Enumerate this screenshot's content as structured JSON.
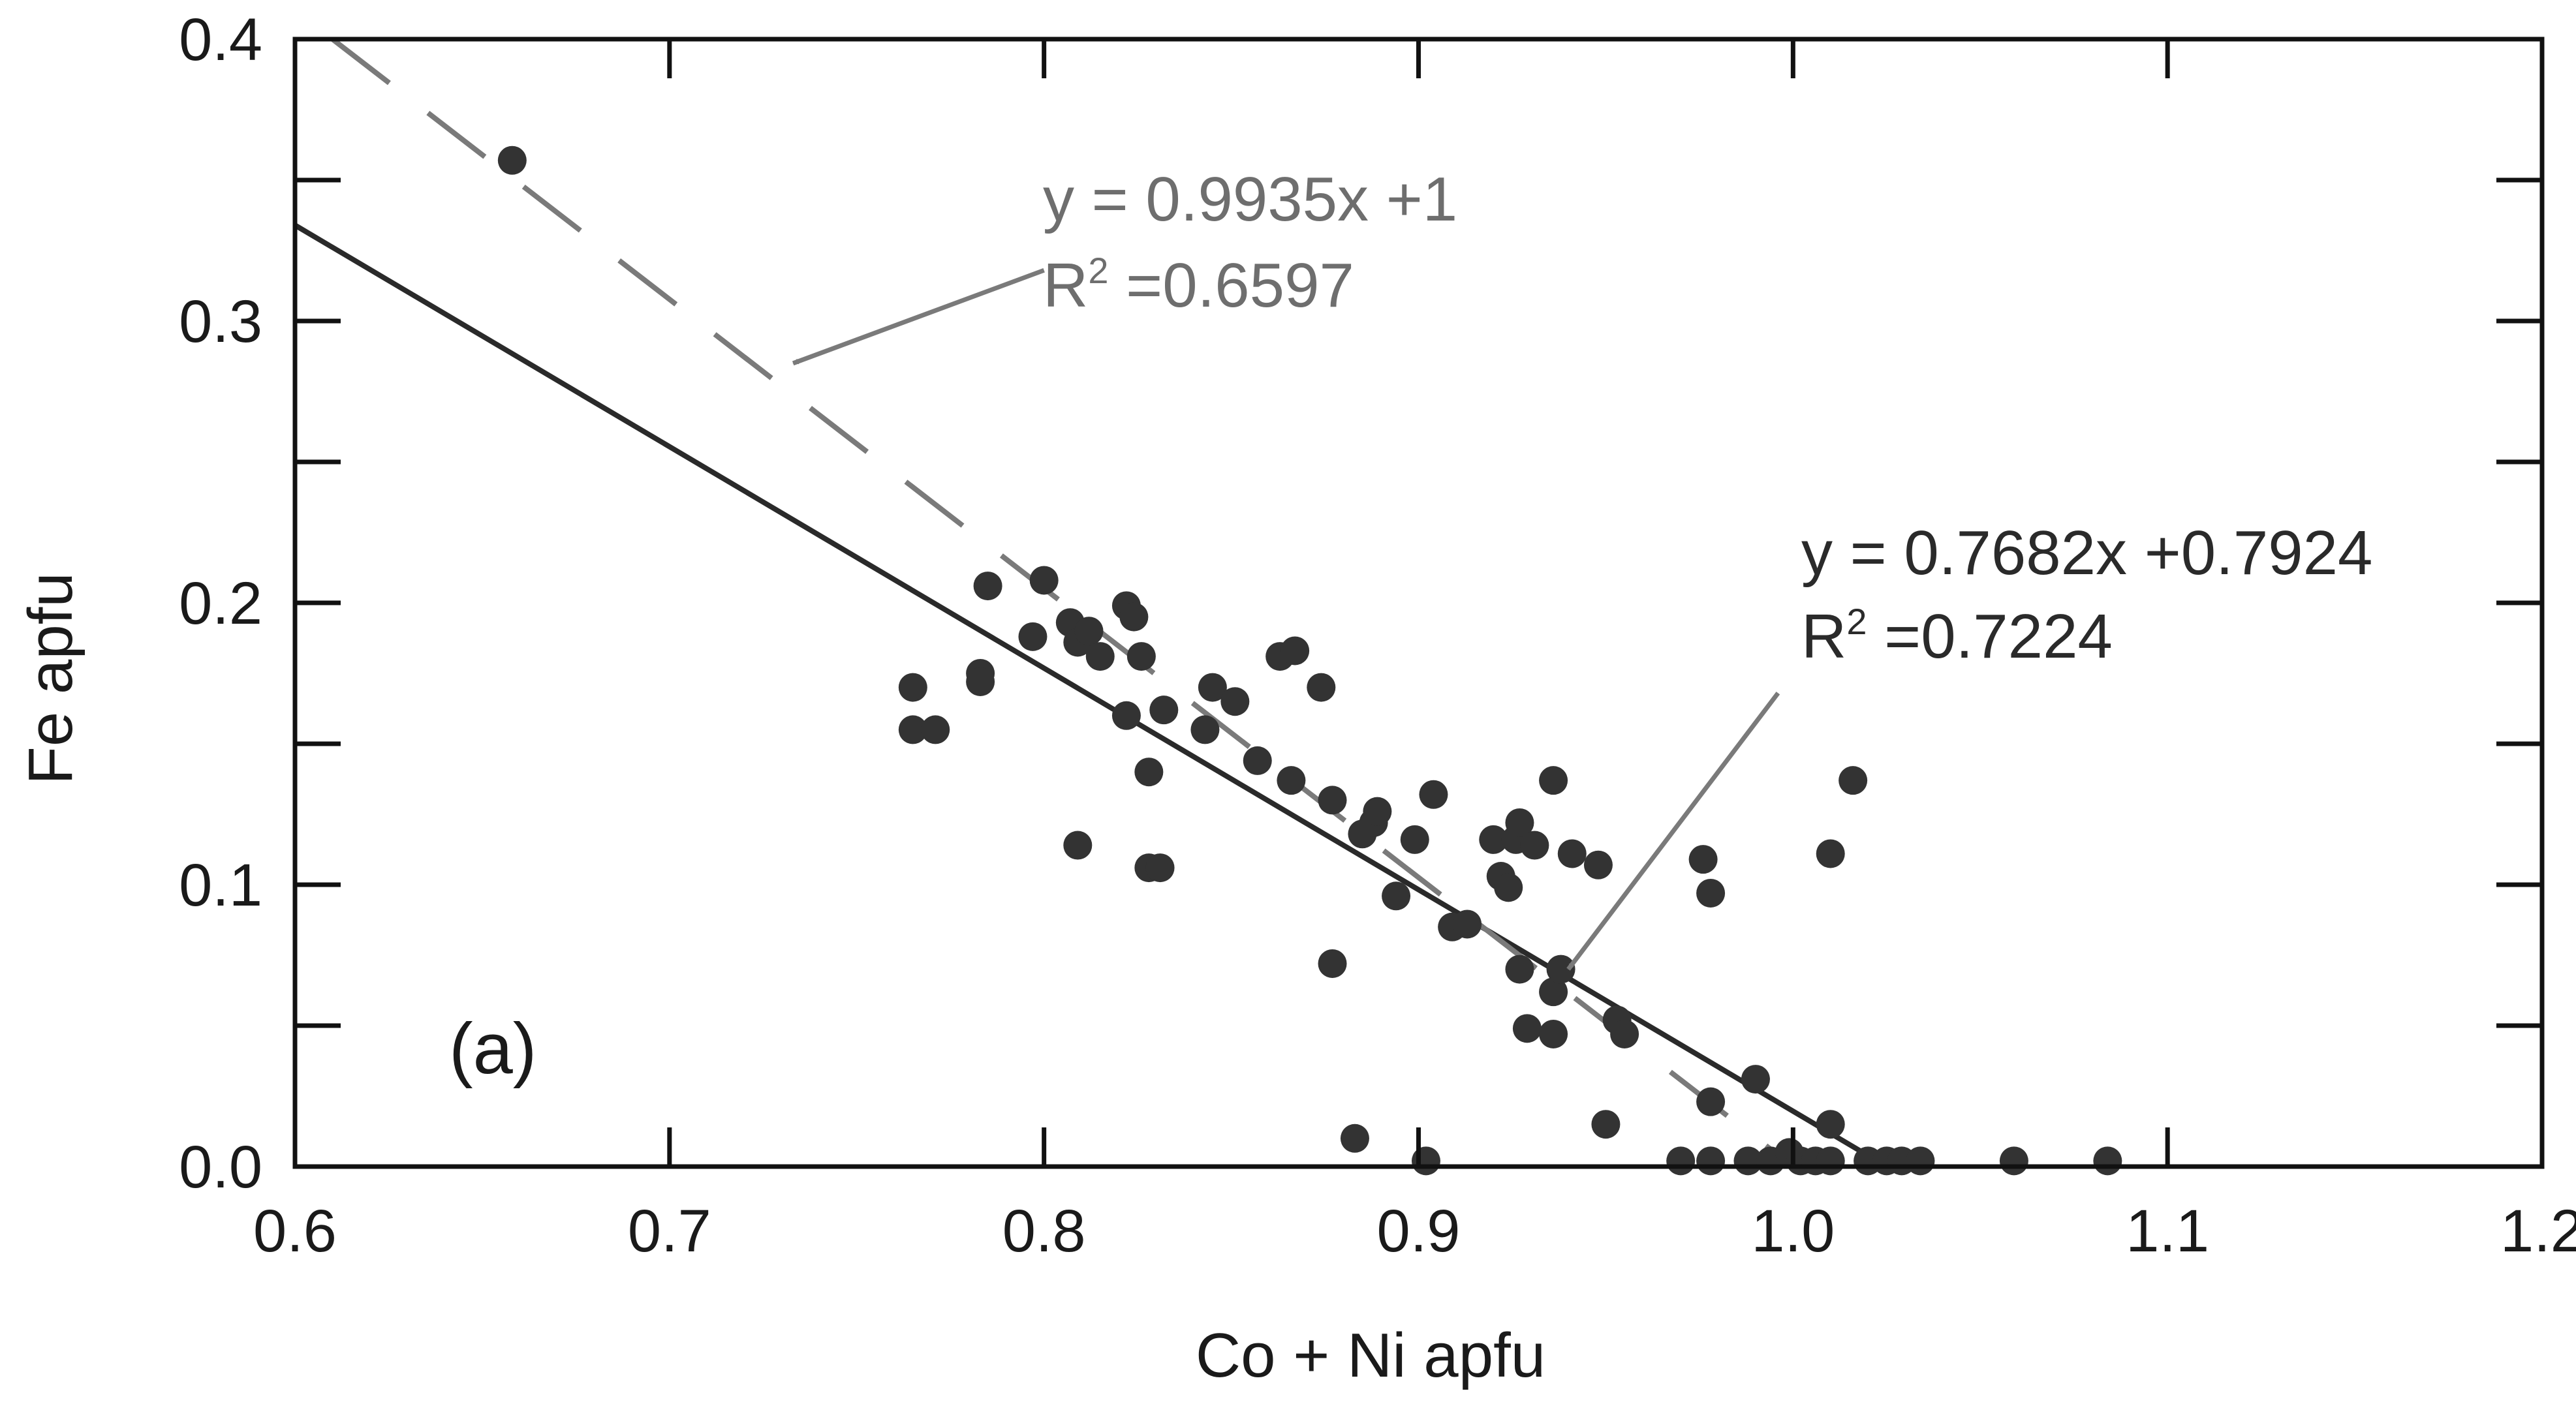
{
  "chart_data": {
    "type": "scatter",
    "panel_label": "(a)",
    "xlabel": "Co + Ni apfu",
    "ylabel": "Fe apfu",
    "xlim": [
      0.6,
      1.2
    ],
    "ylim": [
      0.0,
      0.4
    ],
    "x_ticks": [
      "0.6",
      "0.7",
      "0.8",
      "0.9",
      "1.0",
      "1.1",
      "1.2"
    ],
    "y_ticks": [
      "0.0",
      "0.1",
      "0.2",
      "0.3",
      "0.4"
    ],
    "grid": false,
    "colors": {
      "points": "#333333",
      "solid_fit": "#2a2a2a",
      "dashed_fit": "#7a7a7a",
      "arrow": "#7a7a7a",
      "axis": "#111111"
    },
    "points": [
      {
        "x": 0.658,
        "y": 0.357
      },
      {
        "x": 0.765,
        "y": 0.17
      },
      {
        "x": 0.765,
        "y": 0.155
      },
      {
        "x": 0.771,
        "y": 0.155
      },
      {
        "x": 0.783,
        "y": 0.175
      },
      {
        "x": 0.783,
        "y": 0.172
      },
      {
        "x": 0.785,
        "y": 0.206
      },
      {
        "x": 0.797,
        "y": 0.188
      },
      {
        "x": 0.8,
        "y": 0.208
      },
      {
        "x": 0.807,
        "y": 0.193
      },
      {
        "x": 0.809,
        "y": 0.186
      },
      {
        "x": 0.812,
        "y": 0.19
      },
      {
        "x": 0.815,
        "y": 0.181
      },
      {
        "x": 0.822,
        "y": 0.199
      },
      {
        "x": 0.824,
        "y": 0.195
      },
      {
        "x": 0.826,
        "y": 0.181
      },
      {
        "x": 0.822,
        "y": 0.16
      },
      {
        "x": 0.832,
        "y": 0.162
      },
      {
        "x": 0.828,
        "y": 0.14
      },
      {
        "x": 0.809,
        "y": 0.114
      },
      {
        "x": 0.828,
        "y": 0.106
      },
      {
        "x": 0.831,
        "y": 0.106
      },
      {
        "x": 0.843,
        "y": 0.155
      },
      {
        "x": 0.845,
        "y": 0.17
      },
      {
        "x": 0.851,
        "y": 0.165
      },
      {
        "x": 0.857,
        "y": 0.144
      },
      {
        "x": 0.863,
        "y": 0.181
      },
      {
        "x": 0.867,
        "y": 0.183
      },
      {
        "x": 0.866,
        "y": 0.137
      },
      {
        "x": 0.874,
        "y": 0.17
      },
      {
        "x": 0.877,
        "y": 0.13
      },
      {
        "x": 0.877,
        "y": 0.072
      },
      {
        "x": 0.885,
        "y": 0.118
      },
      {
        "x": 0.888,
        "y": 0.122
      },
      {
        "x": 0.889,
        "y": 0.126
      },
      {
        "x": 0.894,
        "y": 0.096
      },
      {
        "x": 0.899,
        "y": 0.116
      },
      {
        "x": 0.904,
        "y": 0.132
      },
      {
        "x": 0.909,
        "y": 0.085
      },
      {
        "x": 0.913,
        "y": 0.086
      },
      {
        "x": 0.883,
        "y": 0.01
      },
      {
        "x": 0.902,
        "y": 0.002
      },
      {
        "x": 0.92,
        "y": 0.116
      },
      {
        "x": 0.922,
        "y": 0.103
      },
      {
        "x": 0.924,
        "y": 0.099
      },
      {
        "x": 0.926,
        "y": 0.116
      },
      {
        "x": 0.927,
        "y": 0.122
      },
      {
        "x": 0.931,
        "y": 0.114
      },
      {
        "x": 0.927,
        "y": 0.07
      },
      {
        "x": 0.929,
        "y": 0.049
      },
      {
        "x": 0.936,
        "y": 0.062
      },
      {
        "x": 0.936,
        "y": 0.137
      },
      {
        "x": 0.941,
        "y": 0.111
      },
      {
        "x": 0.938,
        "y": 0.07
      },
      {
        "x": 0.936,
        "y": 0.047
      },
      {
        "x": 0.948,
        "y": 0.107
      },
      {
        "x": 0.95,
        "y": 0.015
      },
      {
        "x": 0.953,
        "y": 0.052
      },
      {
        "x": 0.955,
        "y": 0.047
      },
      {
        "x": 0.97,
        "y": 0.002
      },
      {
        "x": 0.976,
        "y": 0.109
      },
      {
        "x": 0.978,
        "y": 0.097
      },
      {
        "x": 0.978,
        "y": 0.023
      },
      {
        "x": 0.978,
        "y": 0.002
      },
      {
        "x": 0.988,
        "y": 0.002
      },
      {
        "x": 0.99,
        "y": 0.031
      },
      {
        "x": 0.994,
        "y": 0.002
      },
      {
        "x": 0.999,
        "y": 0.005
      },
      {
        "x": 1.002,
        "y": 0.002
      },
      {
        "x": 1.006,
        "y": 0.002
      },
      {
        "x": 1.01,
        "y": 0.002
      },
      {
        "x": 1.01,
        "y": 0.015
      },
      {
        "x": 1.01,
        "y": 0.111
      },
      {
        "x": 1.016,
        "y": 0.137
      },
      {
        "x": 1.02,
        "y": 0.002
      },
      {
        "x": 1.025,
        "y": 0.002
      },
      {
        "x": 1.029,
        "y": 0.002
      },
      {
        "x": 1.034,
        "y": 0.002
      },
      {
        "x": 1.059,
        "y": 0.002
      },
      {
        "x": 1.084,
        "y": 0.002
      }
    ],
    "fits": [
      {
        "style": "solid",
        "equation": "y = 0.7682x +0.7924",
        "r2_prefix": "R",
        "r2_sup": "2",
        "r2_value": " =0.7224",
        "line_x": [
          0.6,
          1.025
        ],
        "line_y": [
          0.334,
          0.0
        ],
        "arrow_tip": {
          "x": 0.94,
          "y": 0.07
        },
        "arrow_tail": {
          "x": 0.996,
          "y": 0.168
        }
      },
      {
        "style": "dashed",
        "equation": "y = 0.9935x +1",
        "r2_prefix": "R",
        "r2_sup": "2",
        "r2_value": " =0.6597",
        "line_x": [
          0.61,
          1.0
        ],
        "line_y": [
          0.4,
          0.0
        ],
        "arrow_tip": {
          "x": 0.733,
          "y": 0.285
        },
        "arrow_tail": {
          "x": 0.8,
          "y": 0.318
        }
      }
    ]
  }
}
